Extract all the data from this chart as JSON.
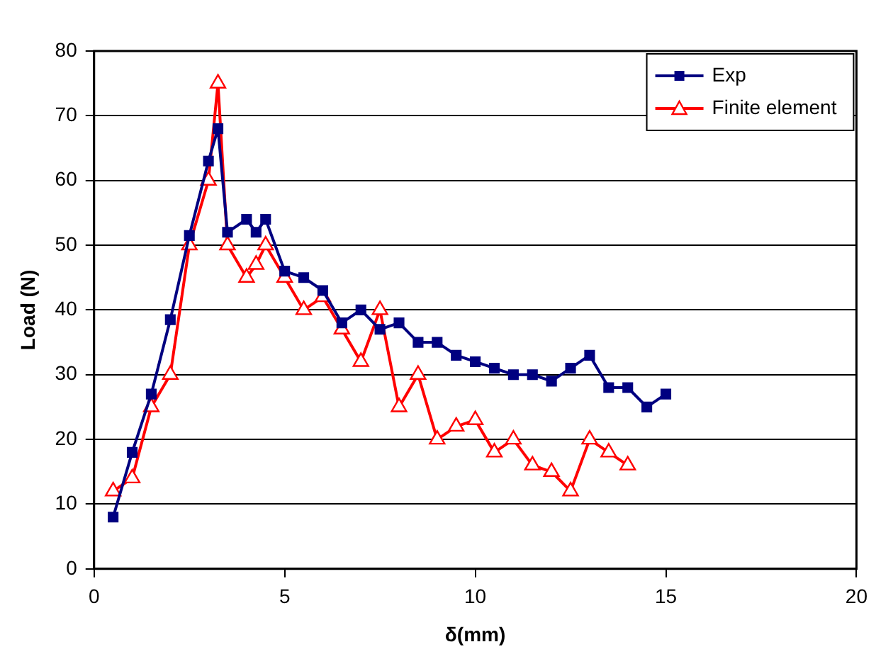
{
  "chart_data": {
    "type": "line",
    "xlabel": "δ(mm)",
    "ylabel": "Load (N)",
    "xlim": [
      0,
      20
    ],
    "xticks": [
      0,
      5,
      10,
      15,
      20
    ],
    "ylim": [
      0,
      80
    ],
    "yticks": [
      0,
      10,
      20,
      30,
      40,
      50,
      60,
      70,
      80
    ],
    "grid": "y",
    "legend": "top right",
    "series": [
      {
        "name": "Exp",
        "color": "#000080",
        "marker": "square",
        "x": [
          0.5,
          1,
          1.5,
          2,
          2.5,
          3,
          3.25,
          3.5,
          4,
          4.25,
          4.5,
          5,
          5.5,
          6,
          6.5,
          7,
          7.5,
          8,
          8.5,
          9,
          9.5,
          10,
          10.5,
          11,
          11.5,
          12,
          12.5,
          13,
          13.5,
          14,
          14.5,
          15
        ],
        "values": [
          8,
          18,
          27,
          38.5,
          51.5,
          63,
          68,
          52,
          54,
          52,
          54,
          46,
          45,
          43,
          38,
          40,
          37,
          38,
          35,
          35,
          33,
          32,
          31,
          30,
          30,
          29,
          31,
          33,
          28,
          28,
          25,
          27
        ]
      },
      {
        "name": "Finite element",
        "color": "#ff0000",
        "marker": "triangle",
        "x": [
          0.5,
          1,
          1.5,
          2,
          2.5,
          3,
          3.25,
          3.5,
          4,
          4.25,
          4.5,
          5,
          5.5,
          6,
          6.5,
          7,
          7.5,
          8,
          8.5,
          9,
          9.5,
          10,
          10.5,
          11,
          11.5,
          12,
          12.5,
          13,
          13.5,
          14
        ],
        "values": [
          12,
          14,
          25,
          30,
          50,
          60,
          75,
          50,
          45,
          47,
          50,
          45,
          40,
          42,
          37,
          32,
          40,
          25,
          30,
          20,
          22,
          23,
          18,
          20,
          16,
          15,
          12,
          20,
          18,
          16
        ]
      }
    ]
  }
}
